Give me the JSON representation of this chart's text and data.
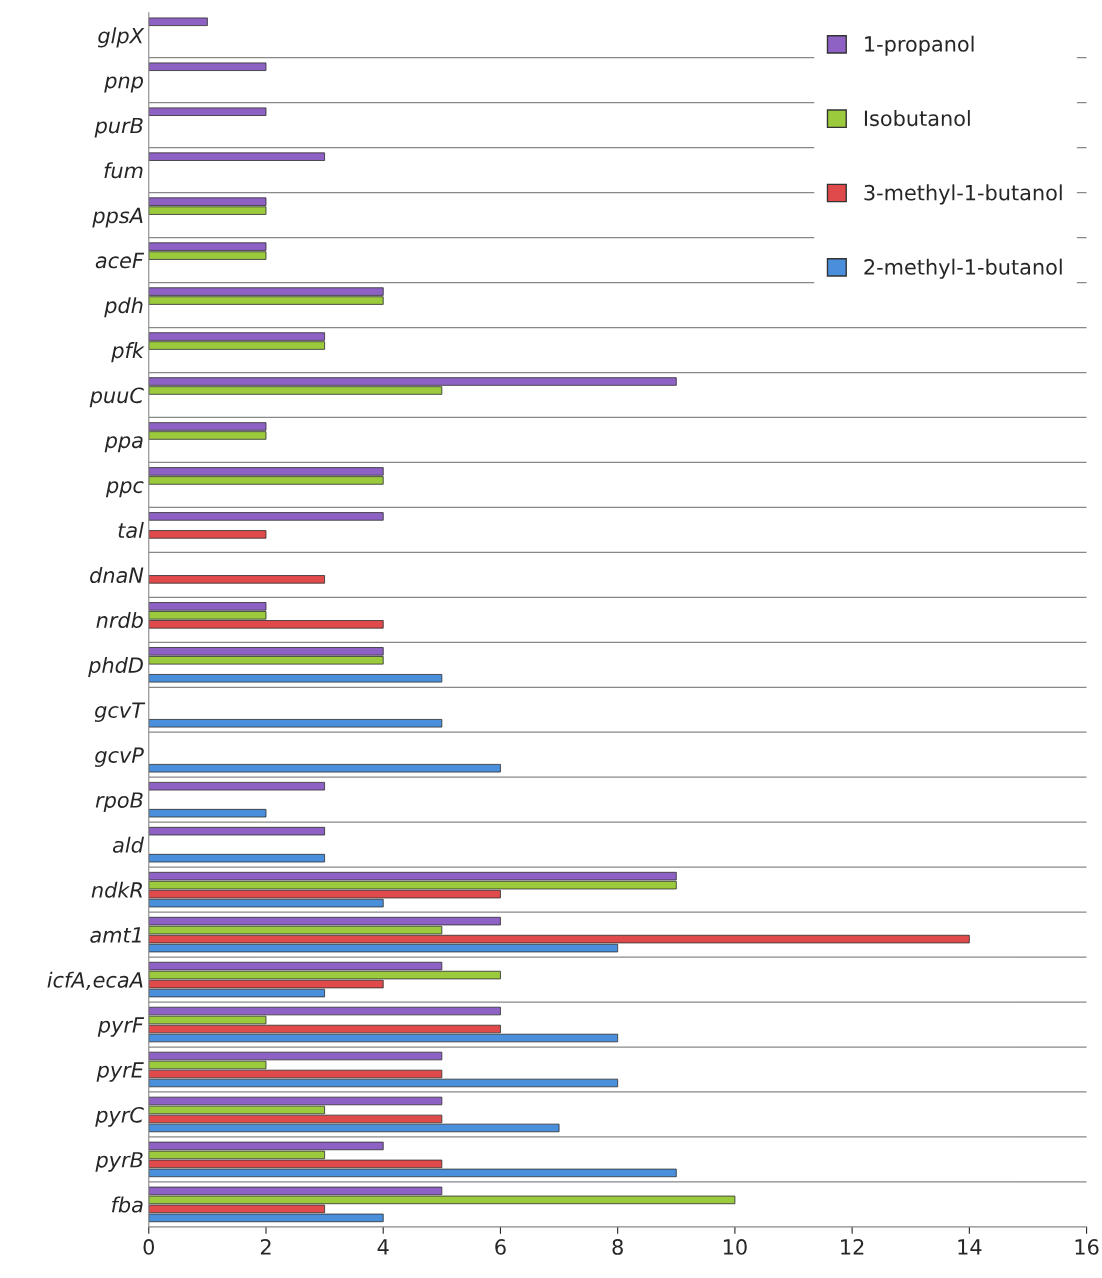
{
  "chart_data": {
    "type": "bar",
    "orientation": "horizontal",
    "categories": [
      "glpX",
      "pnp",
      "purB",
      "fum",
      "ppsA",
      "aceF",
      "pdh",
      "pfk",
      "puuC",
      "ppa",
      "ppc",
      "tal",
      "dnaN",
      "nrdb",
      "phdD",
      "gcvT",
      "gcvP",
      "rpoB",
      "ald",
      "ndkR",
      "amt1",
      "icfA,ecaA",
      "pyrF",
      "pyrE",
      "pyrC",
      "pyrB",
      "fba"
    ],
    "series": [
      {
        "name": "1-propanol",
        "color": "#8e62c4",
        "values": [
          1,
          2,
          2,
          3,
          2,
          2,
          4,
          3,
          9,
          2,
          4,
          4,
          null,
          2,
          4,
          null,
          null,
          3,
          3,
          9,
          6,
          5,
          6,
          5,
          5,
          4,
          5
        ]
      },
      {
        "name": "Isobutanol",
        "color": "#9bcb3c",
        "values": [
          null,
          null,
          null,
          null,
          2,
          2,
          4,
          3,
          5,
          2,
          4,
          null,
          null,
          2,
          4,
          null,
          null,
          null,
          null,
          9,
          5,
          6,
          2,
          2,
          3,
          3,
          10
        ]
      },
      {
        "name": "3-methyl-1-butanol",
        "color": "#e04a4a",
        "values": [
          null,
          null,
          null,
          null,
          null,
          null,
          null,
          null,
          null,
          null,
          null,
          2,
          3,
          4,
          null,
          null,
          null,
          null,
          null,
          6,
          14,
          4,
          6,
          5,
          5,
          5,
          3
        ]
      },
      {
        "name": "2-methyl-1-butanol",
        "color": "#4a8fdc",
        "values": [
          null,
          null,
          null,
          null,
          null,
          null,
          null,
          null,
          null,
          null,
          null,
          null,
          null,
          null,
          5,
          5,
          6,
          2,
          3,
          4,
          8,
          3,
          8,
          8,
          7,
          9,
          4
        ]
      }
    ],
    "xlim": [
      0,
      16
    ],
    "xticks": [
      0,
      2,
      4,
      6,
      8,
      10,
      12,
      14,
      16
    ],
    "grid": "y",
    "legend": "top right"
  }
}
